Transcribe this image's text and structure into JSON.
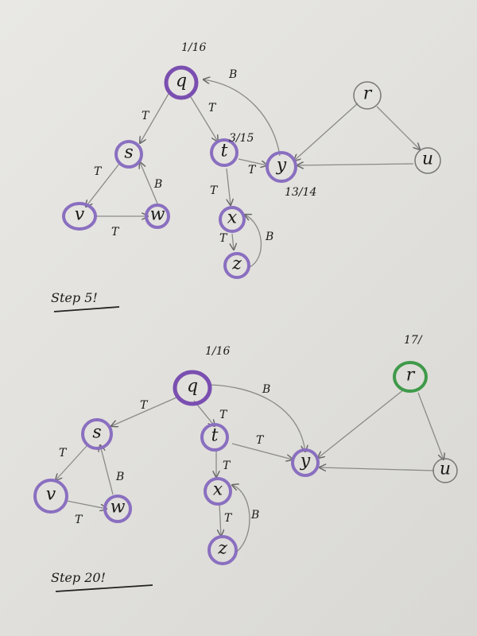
{
  "colors": {
    "purple": "#7a4fb0",
    "green": "#3f9a4a",
    "ink": "#222222",
    "pencil": "#7b7b7b"
  },
  "top": {
    "nodes": {
      "q": "q",
      "s": "s",
      "t": "t",
      "y": "y",
      "r": "r",
      "u": "u",
      "v": "v",
      "w": "w",
      "x": "x",
      "z": "z"
    },
    "times": {
      "q": "1/16",
      "t": "3/15",
      "y": "13/14"
    },
    "edges": {
      "qs": "T",
      "qt": "T",
      "yq": "B",
      "sv": "T",
      "vw": "T",
      "ws": "B",
      "ty": "T",
      "tx": "T",
      "xz": "T",
      "zx": "B"
    },
    "step_label": "Step 5!"
  },
  "bottom": {
    "nodes": {
      "q": "q",
      "s": "s",
      "t": "t",
      "y": "y",
      "r": "r",
      "u": "u",
      "v": "v",
      "w": "w",
      "x": "x",
      "z": "z"
    },
    "times": {
      "q": "1/16",
      "r": "17/"
    },
    "edges": {
      "qs": "T",
      "qt": "T",
      "qy": "B",
      "sv": "T",
      "vw": "T",
      "ws": "B",
      "ty": "T",
      "tx": "T",
      "xz": "T",
      "zx": "B"
    },
    "step_label": "Step 20!"
  }
}
